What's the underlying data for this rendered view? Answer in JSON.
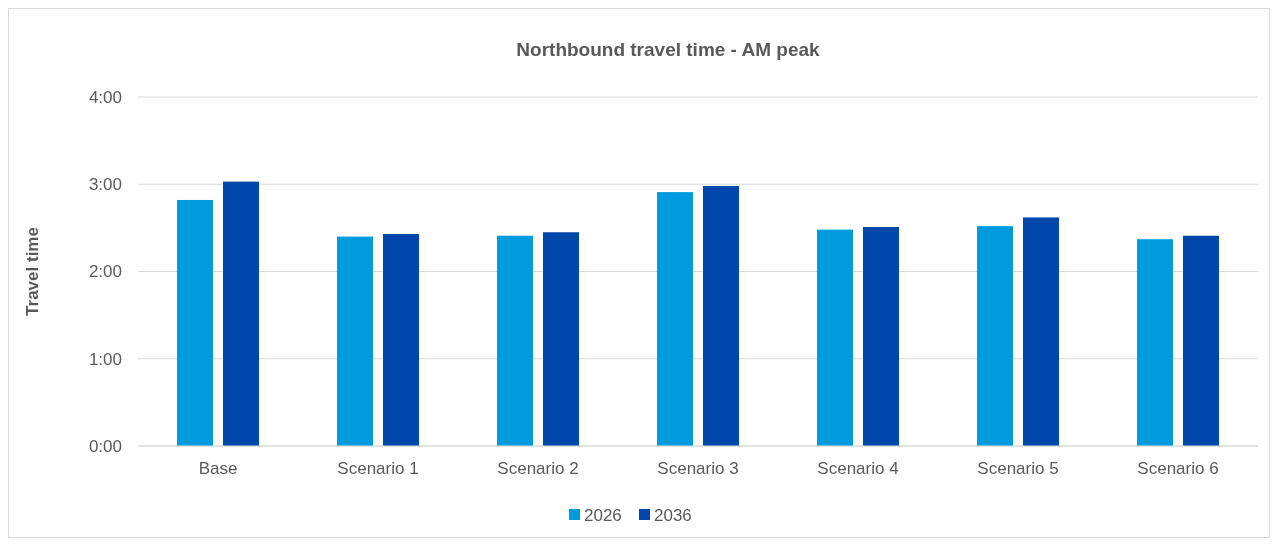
{
  "chart_data": {
    "type": "bar",
    "title": "Northbound travel time - AM peak",
    "ylabel": "Travel time",
    "categories": [
      "Base",
      "Scenario 1",
      "Scenario 2",
      "Scenario 3",
      "Scenario 4",
      "Scenario 5",
      "Scenario 6"
    ],
    "series": [
      {
        "name": "2026",
        "color": "#009bde",
        "values": [
          2.82,
          2.4,
          2.41,
          2.91,
          2.48,
          2.52,
          2.37
        ]
      },
      {
        "name": "2036",
        "color": "#0047ab",
        "values": [
          3.03,
          2.43,
          2.45,
          2.98,
          2.51,
          2.62,
          2.41
        ]
      }
    ],
    "ylim": [
      0,
      4
    ],
    "yticks": [
      {
        "value": 0,
        "label": "0:00"
      },
      {
        "value": 1,
        "label": "1:00"
      },
      {
        "value": 2,
        "label": "2:00"
      },
      {
        "value": 3,
        "label": "3:00"
      },
      {
        "value": 4,
        "label": "4:00"
      }
    ],
    "grid": "y",
    "legend": "bottom"
  }
}
